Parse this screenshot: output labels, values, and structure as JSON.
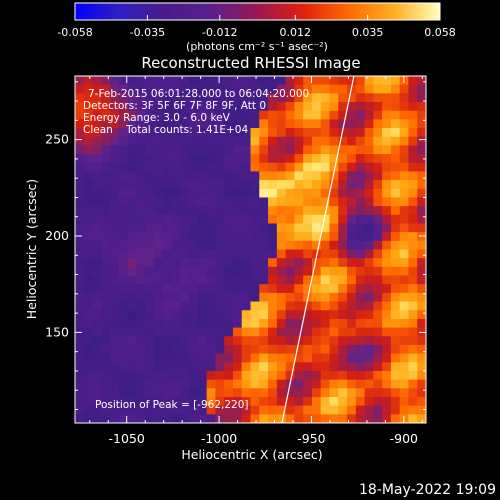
{
  "chart_data": {
    "type": "heatmap",
    "title": "Reconstructed RHESSI Image",
    "xlabel": "Heliocentric X (arcsec)",
    "ylabel": "Heliocentric Y (arcsec)",
    "x_ticks": [
      "-1050",
      "-1000",
      "-950",
      "-900"
    ],
    "x_tick_values": [
      -1050,
      -1000,
      -950,
      -900
    ],
    "y_ticks": [
      "150",
      "200",
      "250"
    ],
    "y_tick_values": [
      150,
      200,
      250
    ],
    "xlim": [
      -1078,
      -888
    ],
    "ylim": [
      103,
      283
    ],
    "colorbar": {
      "min": -0.058,
      "max": 0.058,
      "tick_labels": [
        "-0.058",
        "-0.035",
        "-0.012",
        "0.012",
        "0.035",
        "0.058"
      ],
      "tick_values": [
        -0.058,
        -0.035,
        -0.012,
        0.012,
        0.035,
        0.058
      ],
      "unit_label": "(photons cm⁻² s⁻¹ asec⁻²)",
      "stops": [
        "#0000ff",
        "#3020c0",
        "#4a1a8a",
        "#5a1f8e",
        "#9a1850",
        "#e02010",
        "#ff6a00",
        "#ffb020",
        "#ffffc0"
      ]
    },
    "annotations": [
      "7-Feb-2015 06:01:28.000 to 06:04:20.000",
      "Detectors: 3F 5F 6F 7F 8F 9F, Att 0",
      "Energy Range: 3.0 - 6.0 keV",
      "Clean    Total counts: 1.41E+04"
    ],
    "peak_label": "Position of Peak = [-962,220]",
    "peak": {
      "x": -962,
      "y": 220
    },
    "limb": [
      {
        "x": -966,
        "y": 103
      },
      {
        "x": -927,
        "y": 283
      }
    ]
  },
  "footer": {
    "timestamp": "18-May-2022 19:09"
  }
}
